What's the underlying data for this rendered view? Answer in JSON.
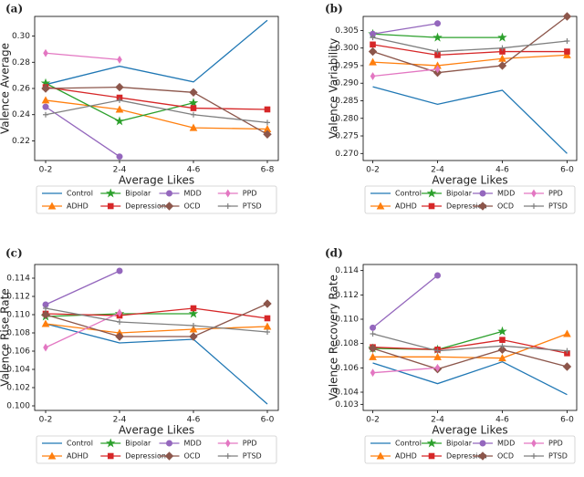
{
  "chart_data": [
    {
      "type": "line",
      "label": "(a)",
      "y_label": "Valence Average",
      "x_label": "Average Likes",
      "categories": [
        "0-2",
        "2-4",
        "4-6",
        "6-8"
      ],
      "ylim": [
        0.205,
        0.315
      ],
      "yticks": [
        0.22,
        0.24,
        0.26,
        0.28,
        {
          "value": 0.3,
          "label": "0.30"
        }
      ],
      "legend": "below",
      "series": [
        {
          "name": "Control",
          "color": "#1f77b4",
          "marker": "none",
          "values": [
            0.263,
            0.277,
            0.265,
            0.312
          ]
        },
        {
          "name": "ADHD",
          "color": "#ff7f0e",
          "marker": "triangle",
          "values": [
            0.251,
            0.244,
            0.23,
            0.229
          ]
        },
        {
          "name": "Bipolar",
          "color": "#2ca02c",
          "marker": "star",
          "values": [
            0.264,
            0.235,
            0.249,
            null
          ]
        },
        {
          "name": "Depression",
          "color": "#d62728",
          "marker": "square",
          "values": [
            0.261,
            0.253,
            0.245,
            0.244
          ]
        },
        {
          "name": "MDD",
          "color": "#9467bd",
          "marker": "circle",
          "values": [
            0.246,
            0.208,
            null,
            null
          ]
        },
        {
          "name": "OCD",
          "color": "#8c564b",
          "marker": "diamond",
          "values": [
            0.26,
            0.261,
            0.257,
            0.225
          ]
        },
        {
          "name": "PPD",
          "color": "#e377c2",
          "marker": "thin-diamond",
          "values": [
            0.287,
            0.282,
            null,
            null
          ]
        },
        {
          "name": "PTSD",
          "color": "#7f7f7f",
          "marker": "plus",
          "values": [
            0.24,
            0.251,
            0.24,
            0.234
          ]
        }
      ]
    },
    {
      "type": "line",
      "label": "(b)",
      "y_label": "Valence Variability",
      "x_label": "Average Likes",
      "categories": [
        "0-2",
        "2-4",
        "4-6",
        "6-0"
      ],
      "ylim": [
        0.268,
        0.309
      ],
      "yticks": [
        {
          "value": 0.27,
          "label": "0.270"
        },
        0.275,
        {
          "value": 0.28,
          "label": "0.280"
        },
        0.285,
        {
          "value": 0.29,
          "label": "0.290"
        },
        0.295,
        {
          "value": 0.3,
          "label": "0.300"
        },
        0.305
      ],
      "legend": "below",
      "series": [
        {
          "name": "Control",
          "color": "#1f77b4",
          "marker": "none",
          "values": [
            0.289,
            0.284,
            0.288,
            0.27
          ]
        },
        {
          "name": "ADHD",
          "color": "#ff7f0e",
          "marker": "triangle",
          "values": [
            0.296,
            0.295,
            0.297,
            0.298
          ]
        },
        {
          "name": "Bipolar",
          "color": "#2ca02c",
          "marker": "star",
          "values": [
            0.304,
            0.303,
            0.303,
            null
          ]
        },
        {
          "name": "Depression",
          "color": "#d62728",
          "marker": "square",
          "values": [
            0.301,
            0.298,
            0.299,
            0.299
          ]
        },
        {
          "name": "MDD",
          "color": "#9467bd",
          "marker": "circle",
          "values": [
            0.304,
            0.307,
            null,
            null
          ]
        },
        {
          "name": "OCD",
          "color": "#8c564b",
          "marker": "diamond",
          "values": [
            0.299,
            0.293,
            0.295,
            0.309
          ]
        },
        {
          "name": "PPD",
          "color": "#e377c2",
          "marker": "thin-diamond",
          "values": [
            0.292,
            0.294,
            null,
            null
          ]
        },
        {
          "name": "PTSD",
          "color": "#7f7f7f",
          "marker": "plus",
          "values": [
            0.303,
            0.299,
            0.3,
            0.302
          ]
        }
      ]
    },
    {
      "type": "line",
      "label": "(c)",
      "y_label": "Valence Rise Rate",
      "x_label": "Average Likes",
      "categories": [
        "0-2",
        "2-4",
        "4-6",
        "6-0"
      ],
      "ylim": [
        0.0995,
        0.1155
      ],
      "yticks": [
        {
          "value": 0.1,
          "label": "0.100"
        },
        0.102,
        0.104,
        0.106,
        0.108,
        {
          "value": 0.11,
          "label": "0.110"
        },
        0.112,
        0.114
      ],
      "legend": "below",
      "series": [
        {
          "name": "Control",
          "color": "#1f77b4",
          "marker": "none",
          "values": [
            0.109,
            0.1069,
            0.1073,
            0.1002
          ]
        },
        {
          "name": "ADHD",
          "color": "#ff7f0e",
          "marker": "triangle",
          "values": [
            0.109,
            0.108,
            0.1084,
            0.1087
          ]
        },
        {
          "name": "Bipolar",
          "color": "#2ca02c",
          "marker": "star",
          "values": [
            0.1098,
            0.1101,
            0.1101,
            null
          ]
        },
        {
          "name": "Depression",
          "color": "#d62728",
          "marker": "square",
          "values": [
            0.1101,
            0.1099,
            0.1107,
            0.1096
          ]
        },
        {
          "name": "MDD",
          "color": "#9467bd",
          "marker": "circle",
          "values": [
            0.1111,
            0.1148,
            null,
            null
          ]
        },
        {
          "name": "OCD",
          "color": "#8c564b",
          "marker": "diamond",
          "values": [
            0.11,
            0.1076,
            0.1076,
            0.1112
          ]
        },
        {
          "name": "PPD",
          "color": "#e377c2",
          "marker": "thin-diamond",
          "values": [
            0.1064,
            0.1102,
            null,
            null
          ]
        },
        {
          "name": "PTSD",
          "color": "#7f7f7f",
          "marker": "plus",
          "values": [
            0.1107,
            0.1092,
            0.1088,
            0.1081
          ]
        }
      ]
    },
    {
      "type": "line",
      "label": "(d)",
      "y_label": "Valence Recovery Rate",
      "x_label": "Average Likes",
      "categories": [
        "0-2",
        "2-4",
        "4-6",
        "6-0"
      ],
      "ylim": [
        0.1025,
        0.1145
      ],
      "yticks": [
        0.103,
        0.104,
        0.106,
        0.108,
        {
          "value": 0.11,
          "label": "0.110"
        },
        0.112,
        0.114
      ],
      "legend": "below",
      "series": [
        {
          "name": "Control",
          "color": "#1f77b4",
          "marker": "none",
          "values": [
            0.1064,
            0.1047,
            0.1065,
            0.1038
          ]
        },
        {
          "name": "ADHD",
          "color": "#ff7f0e",
          "marker": "triangle",
          "values": [
            0.1069,
            0.1069,
            0.1068,
            0.1088
          ]
        },
        {
          "name": "Bipolar",
          "color": "#2ca02c",
          "marker": "star",
          "values": [
            0.1076,
            0.1075,
            0.109,
            null
          ]
        },
        {
          "name": "Depression",
          "color": "#d62728",
          "marker": "square",
          "values": [
            0.1077,
            0.1075,
            0.1083,
            0.1072
          ]
        },
        {
          "name": "MDD",
          "color": "#9467bd",
          "marker": "circle",
          "values": [
            0.1093,
            0.1136,
            null,
            null
          ]
        },
        {
          "name": "OCD",
          "color": "#8c564b",
          "marker": "diamond",
          "values": [
            0.1076,
            0.1059,
            0.1075,
            0.1061
          ]
        },
        {
          "name": "PPD",
          "color": "#e377c2",
          "marker": "thin-diamond",
          "values": [
            0.1056,
            0.106,
            null,
            null
          ]
        },
        {
          "name": "PTSD",
          "color": "#7f7f7f",
          "marker": "plus",
          "values": [
            0.1088,
            0.1074,
            0.1078,
            0.1074
          ]
        }
      ]
    }
  ]
}
